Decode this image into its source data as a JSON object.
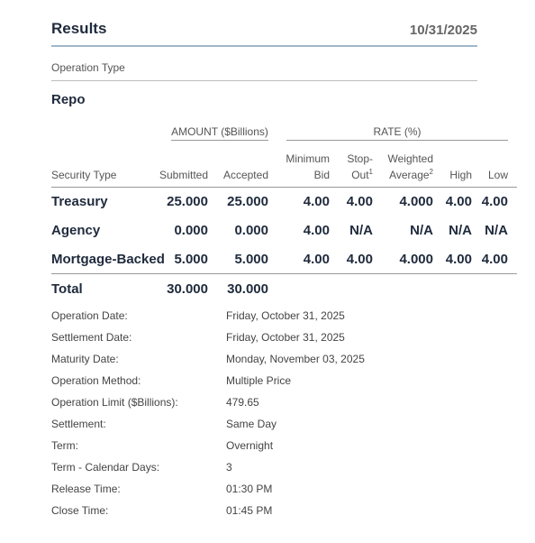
{
  "header": {
    "title": "Results",
    "date": "10/31/2025"
  },
  "operation_type_label": "Operation Type",
  "operation_name": "Repo",
  "table": {
    "group_amount": "AMOUNT ($Billions)",
    "group_rate": "RATE (%)",
    "columns": {
      "security_type": "Security Type",
      "submitted": "Submitted",
      "accepted": "Accepted",
      "min_bid_1": "Minimum",
      "min_bid_2": "Bid",
      "stop_out_1": "Stop-",
      "stop_out_2": "Out",
      "stop_out_sup": "1",
      "wavg_1": "Weighted",
      "wavg_2": "Average",
      "wavg_sup": "2",
      "high": "High",
      "low": "Low"
    },
    "rows": [
      {
        "security": "Treasury",
        "submitted": "25.000",
        "accepted": "25.000",
        "min_bid": "4.00",
        "stop_out": "4.00",
        "wavg": "4.000",
        "high": "4.00",
        "low": "4.00"
      },
      {
        "security": "Agency",
        "submitted": "0.000",
        "accepted": "0.000",
        "min_bid": "4.00",
        "stop_out": "N/A",
        "wavg": "N/A",
        "high": "N/A",
        "low": "N/A"
      },
      {
        "security": "Mortgage-Backed",
        "submitted": "5.000",
        "accepted": "5.000",
        "min_bid": "4.00",
        "stop_out": "4.00",
        "wavg": "4.000",
        "high": "4.00",
        "low": "4.00"
      }
    ],
    "total": {
      "label": "Total",
      "submitted": "30.000",
      "accepted": "30.000"
    }
  },
  "details": [
    {
      "label": "Operation Date:",
      "value": "Friday, October 31, 2025"
    },
    {
      "label": "Settlement Date:",
      "value": "Friday, October 31, 2025"
    },
    {
      "label": "Maturity Date:",
      "value": "Monday, November 03, 2025"
    },
    {
      "label": "Operation Method:",
      "value": "Multiple Price"
    },
    {
      "label": "Operation Limit ($Billions):",
      "value": "479.65"
    },
    {
      "label": "Settlement:",
      "value": "Same Day"
    },
    {
      "label": "Term:",
      "value": "Overnight"
    },
    {
      "label": "Term - Calendar Days:",
      "value": "3"
    },
    {
      "label": "Release Time:",
      "value": "01:30 PM"
    },
    {
      "label": "Close Time:",
      "value": "01:45 PM"
    }
  ]
}
